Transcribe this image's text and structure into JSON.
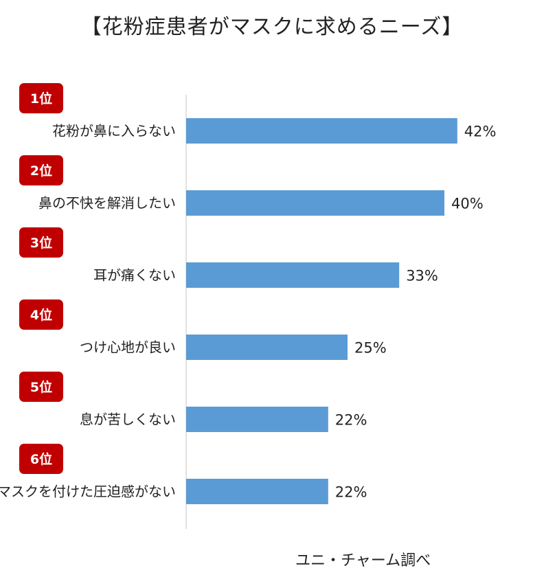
{
  "title": "【花粉症患者がマスクに求めるニーズ】",
  "source": "ユニ・チャーム調べ",
  "colors": {
    "bar": "#5B9BD5",
    "rank_badge": "#C00000",
    "axis": "#D9D9D9"
  },
  "chart_data": {
    "type": "bar",
    "orientation": "horizontal",
    "title": "【花粉症患者がマスクに求めるニーズ】",
    "xlim": [
      0,
      50
    ],
    "grid": false,
    "categories": [
      "花粉が鼻に入らない",
      "鼻の不快を解消したい",
      "耳が痛くない",
      "つけ心地が良い",
      "息が苦しくない",
      "マスクを付けた圧迫感がない"
    ],
    "ranks": [
      "1位",
      "2位",
      "3位",
      "4位",
      "5位",
      "6位"
    ],
    "values": [
      42,
      40,
      33,
      25,
      22,
      22
    ],
    "value_labels": [
      "42%",
      "40%",
      "33%",
      "25%",
      "22%",
      "22%"
    ]
  }
}
